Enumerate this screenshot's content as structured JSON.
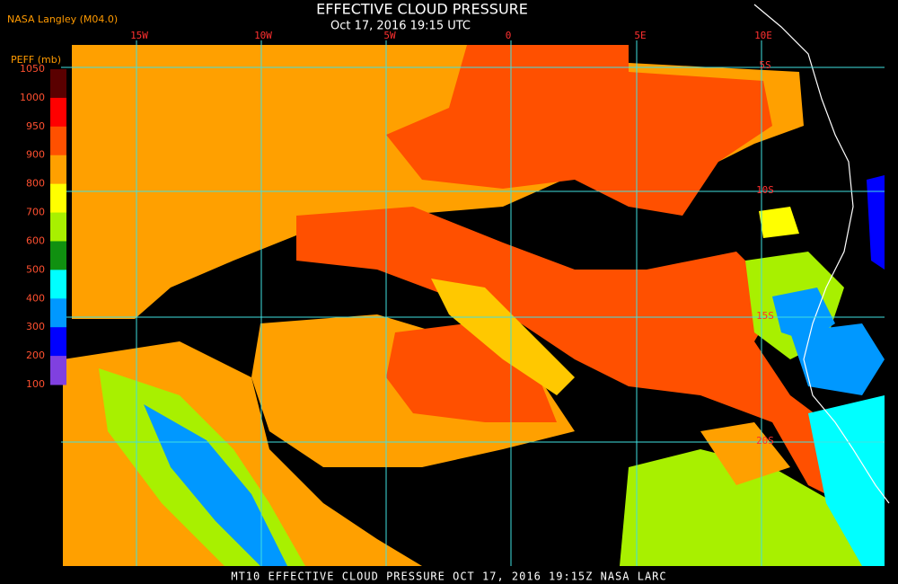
{
  "header": {
    "title": "EFFECTIVE CLOUD PRESSURE",
    "subtitle": "Oct 17, 2016 19:15 UTC",
    "credit": "NASA Langley (M04.0)"
  },
  "colorbar": {
    "label": "PEFF (mb)",
    "ticks": [
      1050,
      1000,
      950,
      900,
      800,
      700,
      600,
      500,
      400,
      300,
      200,
      100
    ],
    "colors": [
      "#5a0000",
      "#ff0000",
      "#ff5000",
      "#ffa000",
      "#ffff00",
      "#a8f000",
      "#109010",
      "#00ffff",
      "#0098ff",
      "#0000ff",
      "#8040e0"
    ]
  },
  "map": {
    "longitude_labels": [
      "15W",
      "10W",
      "5W",
      "0",
      "5E",
      "10E"
    ],
    "latitude_labels": [
      "5S",
      "10S",
      "15S",
      "20S"
    ]
  },
  "footer": "MT10  EFFECTIVE CLOUD PRESSURE  OCT 17, 2016 19:15Z  NASA LARC"
}
